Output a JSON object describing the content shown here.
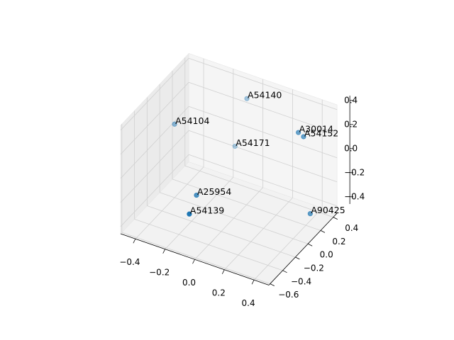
{
  "chart_data": {
    "type": "scatter3d",
    "labels": [
      "A54140",
      "A54104",
      "A30014",
      "A54152",
      "A54171",
      "A25954",
      "A54139",
      "A90425"
    ],
    "x": [
      -0.04,
      -0.4,
      0.35,
      0.385,
      -0.12,
      -0.167,
      -0.13,
      0.43
    ],
    "y": [
      0.3,
      0.0,
      0.2,
      0.2,
      0.3,
      -0.2,
      -0.4,
      0.2
    ],
    "z": [
      0.35,
      0.15,
      0.29,
      0.27,
      -0.08,
      -0.23,
      -0.26,
      -0.35
    ],
    "color": "#1f77b4",
    "xlim": [
      -0.5,
      0.5
    ],
    "ylim": [
      -0.62,
      0.46
    ],
    "zlim": [
      -0.46,
      0.44
    ],
    "xticks": [
      {
        "value": -0.4,
        "label": "−0.4"
      },
      {
        "value": -0.2,
        "label": "−0.2"
      },
      {
        "value": 0.0,
        "label": "0.0"
      },
      0.2,
      0.4
    ],
    "yticks": [
      {
        "value": -0.6,
        "label": "−0.6"
      },
      {
        "value": -0.4,
        "label": "−0.4"
      },
      {
        "value": -0.2,
        "label": "−0.2"
      },
      {
        "value": 0.0,
        "label": "0.0"
      },
      0.2,
      0.4
    ],
    "zticks": [
      {
        "value": -0.4,
        "label": "−0.4"
      },
      {
        "value": -0.2,
        "label": "−0.2"
      },
      {
        "value": 0.0,
        "label": "0.0"
      },
      0.2,
      0.4
    ],
    "grid": true
  }
}
